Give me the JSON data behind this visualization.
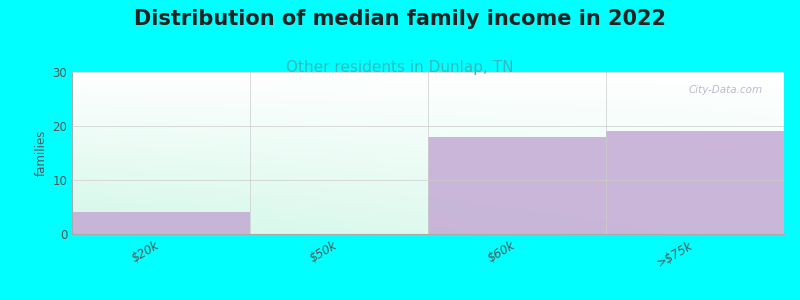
{
  "title": "Distribution of median family income in 2022",
  "subtitle": "Other residents in Dunlap, TN",
  "categories": [
    "$20k",
    "$50k",
    "$60k",
    ">$75k"
  ],
  "values": [
    4,
    0,
    18,
    19
  ],
  "bar_color": "#c4aad4",
  "bg_outer": "#00ffff",
  "ylabel": "families",
  "ylim": [
    0,
    30
  ],
  "yticks": [
    0,
    10,
    20,
    30
  ],
  "title_fontsize": 15,
  "subtitle_fontsize": 11,
  "subtitle_color": "#33bbbb",
  "watermark": "City-Data.com",
  "grad_left": "#d0eedc",
  "grad_right": "#f8f8ff",
  "grad_top": "#f5f5ff",
  "grad_bottom_left": "#c8ecd8"
}
